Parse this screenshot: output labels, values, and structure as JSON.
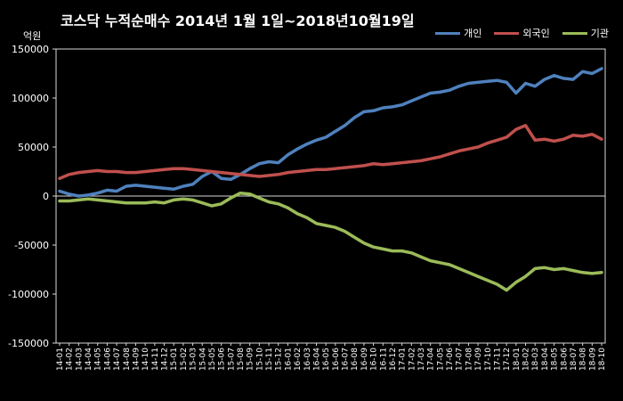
{
  "chart_data": {
    "type": "line",
    "title": "코스닥 누적순매수 2014년 1월 1일~2018년10월19일",
    "unit_label": "억원",
    "ylim": [
      -150000,
      150000
    ],
    "yticks": [
      150000,
      100000,
      50000,
      0,
      -50000,
      -100000,
      -150000
    ],
    "ytick_labels": [
      "150000",
      "100000",
      "50000",
      "0",
      "-50000",
      "-100000",
      "-150000"
    ],
    "legend_position": "top-right",
    "grid": false,
    "x_labels": [
      "14-01",
      "14-02",
      "14-03",
      "14-04",
      "14-05",
      "14-06",
      "14-07",
      "14-08",
      "14-09",
      "14-10",
      "14-11",
      "14-12",
      "15-01",
      "15-02",
      "15-03",
      "15-04",
      "15-05",
      "15-06",
      "15-07",
      "15-08",
      "15-09",
      "15-10",
      "15-11",
      "15-12",
      "16-01",
      "16-02",
      "16-03",
      "16-04",
      "16-05",
      "16-06",
      "16-07",
      "16-08",
      "16-09",
      "16-10",
      "16-11",
      "16-12",
      "17-01",
      "17-02",
      "17-03",
      "17-04",
      "17-05",
      "17-06",
      "17-07",
      "17-08",
      "17-09",
      "17-10",
      "17-11",
      "17-12",
      "18-01",
      "18-02",
      "18-03",
      "18-04",
      "18-05",
      "18-06",
      "18-07",
      "18-08",
      "18-09",
      "18-10"
    ],
    "series": [
      {
        "name": "개인",
        "color": "#4f81bd",
        "values": [
          5000,
          2000,
          0,
          1000,
          3000,
          6000,
          5000,
          10000,
          11000,
          10000,
          9000,
          8000,
          7000,
          10000,
          12000,
          20000,
          25000,
          18000,
          17000,
          22000,
          28000,
          33000,
          35000,
          34000,
          42000,
          48000,
          53000,
          57000,
          60000,
          66000,
          72000,
          80000,
          86000,
          87000,
          90000,
          91000,
          93000,
          97000,
          101000,
          105000,
          106000,
          108000,
          112000,
          115000,
          116000,
          117000,
          118000,
          116000,
          105000,
          115000,
          112000,
          119000,
          123000,
          120000,
          119000,
          127000,
          125000,
          130000
        ]
      },
      {
        "name": "외국인",
        "color": "#c0504d",
        "values": [
          18000,
          22000,
          24000,
          25000,
          26000,
          25000,
          25000,
          24000,
          24000,
          25000,
          26000,
          27000,
          28000,
          28000,
          27000,
          26000,
          25000,
          24000,
          23000,
          22000,
          21000,
          20000,
          21000,
          22000,
          24000,
          25000,
          26000,
          27000,
          27000,
          28000,
          29000,
          30000,
          31000,
          33000,
          32000,
          33000,
          34000,
          35000,
          36000,
          38000,
          40000,
          43000,
          46000,
          48000,
          50000,
          54000,
          57000,
          60000,
          68000,
          72000,
          57000,
          58000,
          56000,
          58000,
          62000,
          61000,
          63000,
          58000
        ]
      },
      {
        "name": "기관",
        "color": "#9bbb59",
        "values": [
          -5000,
          -5000,
          -4000,
          -3000,
          -4000,
          -5000,
          -6000,
          -7000,
          -7000,
          -7000,
          -6000,
          -7000,
          -4000,
          -3000,
          -4000,
          -7000,
          -10000,
          -8000,
          -2000,
          3000,
          2000,
          -2000,
          -6000,
          -8000,
          -12000,
          -18000,
          -22000,
          -28000,
          -30000,
          -32000,
          -36000,
          -42000,
          -48000,
          -52000,
          -54000,
          -56000,
          -56000,
          -58000,
          -62000,
          -66000,
          -68000,
          -70000,
          -74000,
          -78000,
          -82000,
          -86000,
          -90000,
          -96000,
          -88000,
          -82000,
          -74000,
          -73000,
          -75000,
          -74000,
          -76000,
          -78000,
          -79000,
          -78000
        ]
      }
    ]
  }
}
